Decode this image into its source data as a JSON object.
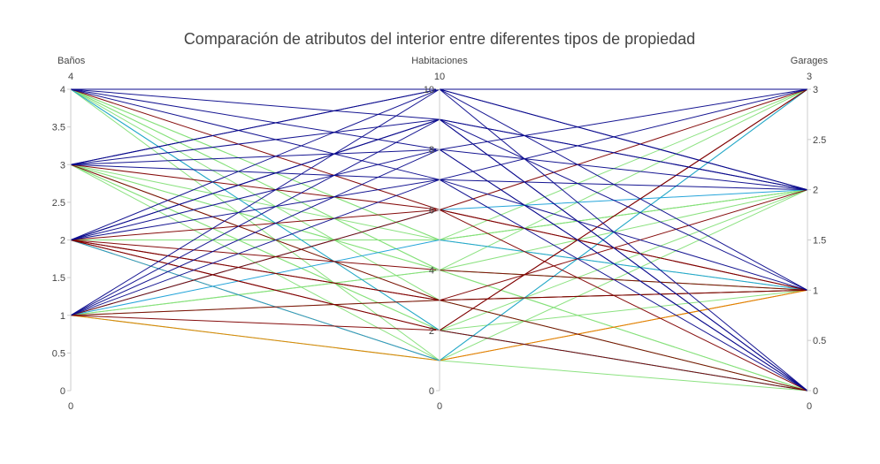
{
  "chart_data": {
    "type": "parallel_coordinates",
    "title": "Comparación de atributos del interior entre diferentes tipos de propiedad",
    "dimensions": [
      {
        "label": "Baños",
        "range": [
          0,
          4
        ],
        "ticks": [
          0,
          0.5,
          1,
          1.5,
          2,
          2.5,
          3,
          3.5,
          4
        ],
        "tick_labels": [
          "0",
          "0.5",
          "1",
          "1.5",
          "2",
          "2.5",
          "3",
          "3.5",
          "4"
        ]
      },
      {
        "label": "Habitaciones",
        "range": [
          0,
          10
        ],
        "ticks": [
          0,
          2,
          4,
          6,
          8,
          10
        ],
        "tick_labels": [
          "0",
          "2",
          "4",
          "6",
          "8",
          "10"
        ]
      },
      {
        "label": "Garages",
        "range": [
          0,
          3
        ],
        "ticks": [
          0,
          0.5,
          1,
          1.5,
          2,
          2.5,
          3
        ],
        "tick_labels": [
          "0",
          "0.5",
          "1",
          "1.5",
          "2",
          "2.5",
          "3"
        ]
      }
    ],
    "range_labels": {
      "top": [
        "4",
        "10",
        "3"
      ],
      "bottom": [
        "0",
        "0",
        "0"
      ]
    },
    "line_colors": {
      "darkred": "#7f0000",
      "orange": "#e07f00",
      "lightgreen": "#86e07a",
      "cyan": "#1aa0d8",
      "navy": "#0a0a8c"
    },
    "lines": [
      {
        "values": [
          4,
          10,
          3
        ],
        "color": "navy"
      },
      {
        "values": [
          4,
          9,
          2
        ],
        "color": "navy"
      },
      {
        "values": [
          4,
          8,
          2
        ],
        "color": "navy"
      },
      {
        "values": [
          4,
          10,
          1
        ],
        "color": "navy"
      },
      {
        "values": [
          4,
          7,
          1
        ],
        "color": "navy"
      },
      {
        "values": [
          4,
          2,
          0
        ],
        "color": "cyan"
      },
      {
        "values": [
          4,
          6,
          1
        ],
        "color": "darkred"
      },
      {
        "values": [
          4,
          5,
          1
        ],
        "color": "lightgreen"
      },
      {
        "values": [
          4,
          4,
          1
        ],
        "color": "lightgreen"
      },
      {
        "values": [
          4,
          3,
          1
        ],
        "color": "lightgreen"
      },
      {
        "values": [
          4,
          4,
          0
        ],
        "color": "lightgreen"
      },
      {
        "values": [
          4,
          2,
          1
        ],
        "color": "lightgreen"
      },
      {
        "values": [
          4,
          5,
          2
        ],
        "color": "lightgreen"
      },
      {
        "values": [
          3,
          10,
          2
        ],
        "color": "navy"
      },
      {
        "values": [
          3,
          9,
          2
        ],
        "color": "navy"
      },
      {
        "values": [
          3,
          8,
          3
        ],
        "color": "navy"
      },
      {
        "values": [
          3,
          7,
          2
        ],
        "color": "navy"
      },
      {
        "values": [
          3,
          6,
          1
        ],
        "color": "darkred"
      },
      {
        "values": [
          3,
          3,
          1
        ],
        "color": "darkred"
      },
      {
        "values": [
          3,
          5,
          2
        ],
        "color": "lightgreen"
      },
      {
        "values": [
          3,
          4,
          1
        ],
        "color": "lightgreen"
      },
      {
        "values": [
          3,
          2,
          2
        ],
        "color": "lightgreen"
      },
      {
        "values": [
          3,
          3,
          0
        ],
        "color": "lightgreen"
      },
      {
        "values": [
          3,
          2,
          0
        ],
        "color": "lightgreen"
      },
      {
        "values": [
          3,
          4,
          3
        ],
        "color": "lightgreen"
      },
      {
        "values": [
          2,
          10,
          3
        ],
        "color": "navy"
      },
      {
        "values": [
          2,
          9,
          1
        ],
        "color": "navy"
      },
      {
        "values": [
          2,
          8,
          0
        ],
        "color": "navy"
      },
      {
        "values": [
          2,
          7,
          0
        ],
        "color": "navy"
      },
      {
        "values": [
          2,
          6,
          3
        ],
        "color": "darkred"
      },
      {
        "values": [
          2,
          5,
          2
        ],
        "color": "lightgreen"
      },
      {
        "values": [
          2,
          4,
          1
        ],
        "color": "darkred"
      },
      {
        "values": [
          2,
          3,
          1
        ],
        "color": "darkred"
      },
      {
        "values": [
          2,
          2,
          0
        ],
        "color": "darkred"
      },
      {
        "values": [
          2,
          1,
          1
        ],
        "color": "orange"
      },
      {
        "values": [
          2,
          5,
          3
        ],
        "color": "lightgreen"
      },
      {
        "values": [
          2,
          3,
          0
        ],
        "color": "darkred"
      },
      {
        "values": [
          1,
          10,
          2
        ],
        "color": "navy"
      },
      {
        "values": [
          1,
          9,
          0
        ],
        "color": "navy"
      },
      {
        "values": [
          1,
          7,
          3
        ],
        "color": "navy"
      },
      {
        "values": [
          1,
          8,
          0
        ],
        "color": "navy"
      },
      {
        "values": [
          1,
          6,
          0
        ],
        "color": "darkred"
      },
      {
        "values": [
          1,
          5,
          1
        ],
        "color": "cyan"
      },
      {
        "values": [
          1,
          4,
          0
        ],
        "color": "lightgreen"
      },
      {
        "values": [
          1,
          3,
          2
        ],
        "color": "darkred"
      },
      {
        "values": [
          1,
          1,
          0
        ],
        "color": "lightgreen"
      },
      {
        "values": [
          1,
          2,
          3
        ],
        "color": "darkred"
      },
      {
        "values": [
          1,
          1,
          1
        ],
        "color": "orange"
      },
      {
        "values": [
          1,
          3,
          0
        ],
        "color": "lightgreen"
      },
      {
        "values": [
          2,
          1,
          3
        ],
        "color": "cyan"
      },
      {
        "values": [
          1,
          4,
          2
        ],
        "color": "lightgreen"
      },
      {
        "values": [
          3,
          1,
          2
        ],
        "color": "lightgreen"
      },
      {
        "values": [
          4,
          1,
          3
        ],
        "color": "lightgreen"
      },
      {
        "values": [
          2,
          2,
          3
        ],
        "color": "darkred"
      },
      {
        "values": [
          1,
          6,
          2
        ],
        "color": "cyan"
      },
      {
        "values": [
          3,
          10,
          0
        ],
        "color": "navy"
      },
      {
        "values": [
          2,
          9,
          0
        ],
        "color": "navy"
      }
    ]
  }
}
